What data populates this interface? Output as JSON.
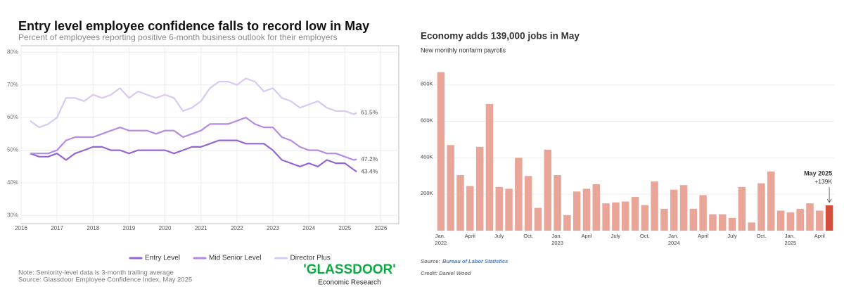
{
  "chart_data": [
    {
      "type": "line",
      "title": "Entry level employee confidence falls to record low in May",
      "subtitle": "Percent of employees reporting positive 6-month business outlook for their employers",
      "x": [
        2016.25,
        2016.5,
        2016.75,
        2017,
        2017.25,
        2017.5,
        2017.75,
        2018,
        2018.25,
        2018.5,
        2018.75,
        2019,
        2019.25,
        2019.5,
        2019.75,
        2020,
        2020.25,
        2020.5,
        2020.75,
        2021,
        2021.25,
        2021.5,
        2021.75,
        2022,
        2022.25,
        2022.5,
        2022.75,
        2023,
        2023.25,
        2023.5,
        2023.75,
        2024,
        2024.25,
        2024.5,
        2024.75,
        2025,
        2025.25,
        2025.33
      ],
      "xlim": [
        2016,
        2026.5
      ],
      "xticks": [
        2016,
        2017,
        2018,
        2019,
        2020,
        2021,
        2022,
        2023,
        2024,
        2025,
        2026
      ],
      "ylim": [
        27.5,
        82
      ],
      "yticks": [
        {
          "value": 30,
          "label": "30%"
        },
        {
          "value": 40,
          "label": "40%"
        },
        {
          "value": 50,
          "label": "50%"
        },
        {
          "value": 60,
          "label": "60%"
        },
        {
          "value": 70,
          "label": "70%"
        },
        {
          "value": 80,
          "label": "80%"
        }
      ],
      "grid": true,
      "legend": "bottom",
      "series": [
        {
          "name": "Entry Level",
          "color": "#9466d4",
          "end_label": "43.4%",
          "values": [
            49,
            48,
            48,
            49,
            47,
            49,
            50,
            51,
            51,
            50,
            50,
            49,
            50,
            50,
            50,
            50,
            49,
            50,
            51,
            51,
            52,
            53,
            53,
            53,
            52,
            52,
            52,
            50,
            47,
            46,
            45,
            46,
            45,
            47,
            46,
            46,
            44,
            43.4
          ]
        },
        {
          "name": "Mid Senior Level",
          "color": "#b48be3",
          "end_label": "47.2%",
          "values": [
            49,
            49,
            49,
            50,
            53,
            54,
            54,
            54,
            55,
            56,
            57,
            56,
            56,
            56,
            55,
            56,
            56,
            54,
            55,
            56,
            58,
            58,
            58,
            59,
            60,
            58,
            57,
            57,
            54,
            53,
            51,
            50,
            50,
            49,
            49,
            48,
            47,
            47.2
          ]
        },
        {
          "name": "Director Plus",
          "color": "#d9c8f2",
          "end_label": "61.5%",
          "values": [
            59,
            57,
            58,
            60,
            66,
            66,
            65,
            67,
            66,
            67,
            69,
            66,
            68,
            67,
            66,
            67,
            66,
            62,
            63,
            65,
            69,
            71,
            71,
            70,
            72,
            71,
            68,
            69,
            66,
            65,
            63,
            64,
            65,
            63,
            62,
            62,
            61,
            61.5
          ]
        }
      ],
      "note": "Note: Seniority-level data is 3-month trailing average",
      "source": "Source: Glassdoor Employee Confidence Index, May 2025",
      "logo": "'GLASSDOOR'",
      "logo_subtitle": "Economic Research"
    },
    {
      "type": "bar",
      "title": "Economy adds 139,000 jobs in May",
      "subtitle": "New monthly nonfarm payrolls",
      "categories": [
        "Jan. 2022",
        null,
        null,
        "April",
        null,
        null,
        "July",
        null,
        null,
        "Oct.",
        null,
        null,
        "Jan. 2023",
        null,
        null,
        "April",
        null,
        null,
        "July",
        null,
        null,
        "Oct.",
        null,
        null,
        "Jan. 2024",
        null,
        null,
        "April",
        null,
        null,
        "July",
        null,
        null,
        "Oct.",
        null,
        null,
        "Jan. 2025",
        null,
        null,
        "April",
        null
      ],
      "values": [
        870000,
        470000,
        305000,
        245000,
        460000,
        695000,
        240000,
        230000,
        400000,
        300000,
        125000,
        445000,
        305000,
        85000,
        215000,
        230000,
        255000,
        150000,
        155000,
        160000,
        185000,
        140000,
        270000,
        120000,
        225000,
        250000,
        120000,
        195000,
        90000,
        90000,
        70000,
        240000,
        45000,
        260000,
        325000,
        110000,
        100000,
        120000,
        150000,
        110000,
        139000
      ],
      "color": "#e9a597",
      "ylim": [
        0,
        880000
      ],
      "yticks": [
        {
          "value": 200000,
          "label": "200K"
        },
        {
          "value": 400000,
          "label": "400K"
        },
        {
          "value": 600000,
          "label": "600K"
        },
        {
          "value": 800000,
          "label": "800K"
        }
      ],
      "grid": true,
      "annotation": {
        "title": "May 2025",
        "text": "+139K",
        "color": "#d44d3b"
      },
      "source_label": "Source:",
      "source": "Bureau of Labor Statistics",
      "credit": "Credit: Daniel Wood"
    }
  ]
}
